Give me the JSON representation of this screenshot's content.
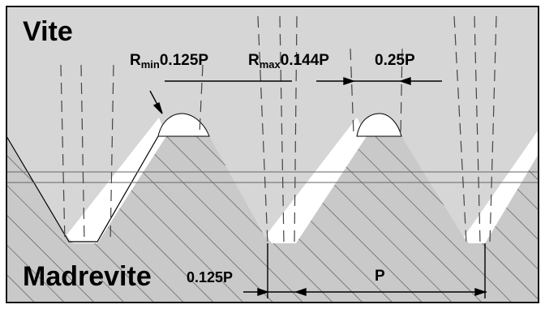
{
  "screw_label": "Vite",
  "nut_label": "Madrevite",
  "dimensions": {
    "r_min": {
      "prefix": "R",
      "sub": "min",
      "value": "0.125P"
    },
    "r_max": {
      "prefix": "R",
      "sub": "max",
      "value": "0.144P"
    },
    "crest_width": "0.25P",
    "root_width": "0.125P",
    "pitch": "P"
  },
  "colors": {
    "background_top": "#d6d6d6",
    "nut_fill": "#c9c9c9",
    "hatch": "#5a5a5a",
    "clearance": "#ffffff",
    "line": "#000000",
    "border": "#111111"
  }
}
